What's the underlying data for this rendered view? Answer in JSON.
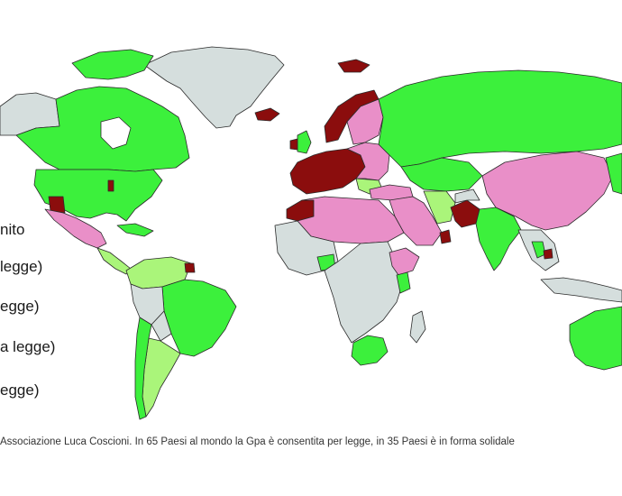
{
  "legend": {
    "items": [
      {
        "label": "nito",
        "category": "not-defined"
      },
      {
        "label": "legge)",
        "category": "allowed"
      },
      {
        "label": "egge)",
        "category": "solidarity"
      },
      {
        "label": "a legge)",
        "category": "forbidden"
      },
      {
        "label": "egge)",
        "category": "unregulated"
      }
    ]
  },
  "caption": "Associazione Luca Coscioni. In 65 Paesi al mondo la Gpa è consentita per legge, in 35 Paesi è in forma solidale",
  "colors": {
    "allowed": "#3cf03c",
    "solidarity": "#aaf57a",
    "forbidden": "#e98fc8",
    "criminalized": "#8b0d0d",
    "unknown": "#d5dedd",
    "border": "#2b2b2b"
  },
  "icons": []
}
